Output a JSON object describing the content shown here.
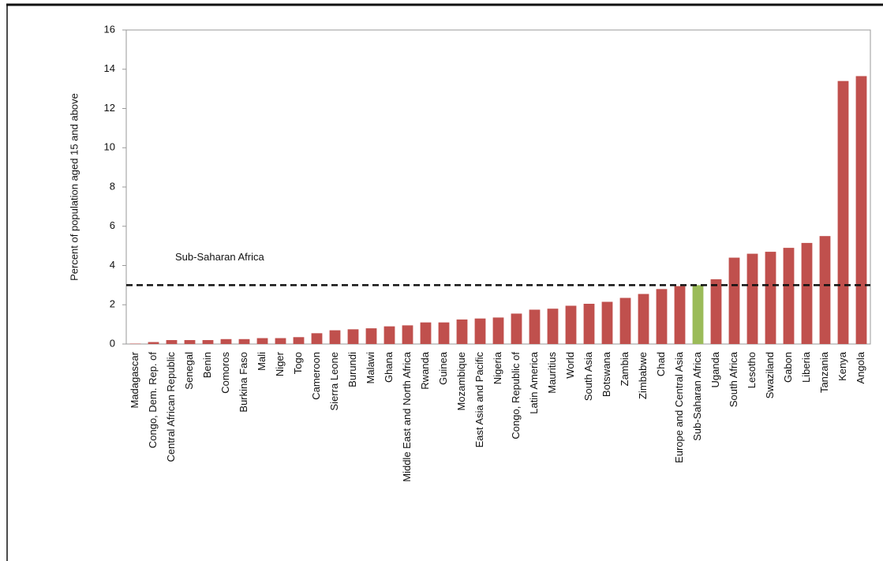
{
  "chart_data": {
    "type": "bar",
    "y_label": "Percent of population aged 15 and above",
    "categories": [
      "Madagascar",
      "Congo, Dem. Rep. of",
      "Central African Republic",
      "Senegal",
      "Benin",
      "Comoros",
      "Burkina Faso",
      "Mali",
      "Niger",
      "Togo",
      "Cameroon",
      "Sierra Leone",
      "Burundi",
      "Malawi",
      "Ghana",
      "Middle East and North Africa",
      "Rwanda",
      "Guinea",
      "Mozambique",
      "East Asia and Pacific",
      "Nigeria",
      "Congo, Republic of",
      "Latin America",
      "Mauritius",
      "World",
      "South Asia",
      "Botswana",
      "Zambia",
      "Zimbabwe",
      "Chad",
      "Europe and Central Asia",
      "Sub-Saharan Africa",
      "Uganda",
      "South Africa",
      "Lesotho",
      "Swaziland",
      "Gabon",
      "Liberia",
      "Tanzania",
      "Kenya",
      "Angola"
    ],
    "values": [
      0.02,
      0.1,
      0.2,
      0.2,
      0.2,
      0.25,
      0.25,
      0.3,
      0.3,
      0.35,
      0.55,
      0.7,
      0.75,
      0.8,
      0.9,
      0.95,
      1.1,
      1.1,
      1.25,
      1.3,
      1.35,
      1.55,
      1.75,
      1.8,
      1.95,
      2.05,
      2.15,
      2.35,
      2.55,
      2.8,
      2.95,
      3.0,
      3.3,
      4.4,
      4.6,
      4.7,
      4.9,
      5.15,
      5.5,
      13.4,
      13.65
    ],
    "colors": [
      "#c0504d",
      "#c0504d",
      "#c0504d",
      "#c0504d",
      "#c0504d",
      "#c0504d",
      "#c0504d",
      "#c0504d",
      "#c0504d",
      "#c0504d",
      "#c0504d",
      "#c0504d",
      "#c0504d",
      "#c0504d",
      "#c0504d",
      "#c0504d",
      "#c0504d",
      "#c0504d",
      "#c0504d",
      "#c0504d",
      "#c0504d",
      "#c0504d",
      "#c0504d",
      "#c0504d",
      "#c0504d",
      "#c0504d",
      "#c0504d",
      "#c0504d",
      "#c0504d",
      "#c0504d",
      "#c0504d",
      "#9bbb59",
      "#c0504d",
      "#c0504d",
      "#c0504d",
      "#c0504d",
      "#c0504d",
      "#c0504d",
      "#c0504d",
      "#c0504d",
      "#c0504d"
    ],
    "reference_line": {
      "value": 3,
      "label": "Sub-Saharan Africa"
    },
    "ylim": [
      0,
      16
    ],
    "yticks": [
      0,
      2,
      4,
      6,
      8,
      10,
      12,
      14,
      16
    ],
    "grid": false
  }
}
